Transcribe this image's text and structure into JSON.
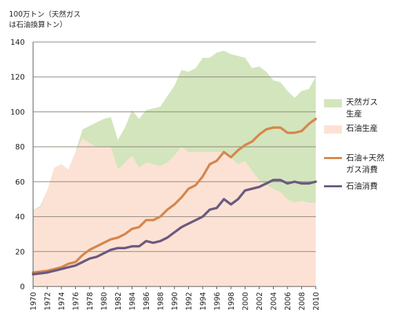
{
  "chart_data": {
    "type": "area",
    "unit_label_lines": [
      "100万トン（天然ガス",
      "は石油換算トン）"
    ],
    "x": [
      1970,
      1971,
      1972,
      1973,
      1974,
      1975,
      1976,
      1977,
      1978,
      1979,
      1980,
      1981,
      1982,
      1983,
      1984,
      1985,
      1986,
      1987,
      1988,
      1989,
      1990,
      1991,
      1992,
      1993,
      1994,
      1995,
      1996,
      1997,
      1998,
      1999,
      2000,
      2001,
      2002,
      2003,
      2004,
      2005,
      2006,
      2007,
      2008,
      2009,
      2010
    ],
    "x_ticks": [
      "1970",
      "1972",
      "1974",
      "1976",
      "1978",
      "1980",
      "1982",
      "1984",
      "1986",
      "1988",
      "1990",
      "1992",
      "1994",
      "1996",
      "1998",
      "2000",
      "2002",
      "2004",
      "2006",
      "2008",
      "2010"
    ],
    "ylim": [
      0,
      140
    ],
    "y_ticks": [
      "0",
      "20",
      "40",
      "60",
      "80",
      "100",
      "120",
      "140"
    ],
    "grid": "horizontal",
    "legend_position": "right",
    "series": [
      {
        "name_lines": [
          "天然ガス",
          "生産"
        ],
        "kind": "area-stacked",
        "color": "#d3e5bd",
        "values": [
          44,
          46,
          55,
          68,
          70,
          67,
          77,
          90,
          92,
          94,
          96,
          97,
          84,
          91,
          101,
          96,
          101,
          102,
          103,
          109,
          115,
          124,
          123,
          125,
          131,
          131,
          134,
          135,
          133,
          132,
          131,
          125,
          126,
          123,
          118,
          117,
          112,
          108,
          112,
          113,
          120
        ]
      },
      {
        "name_lines": [
          "石油生産"
        ],
        "kind": "area",
        "color": "#fce2d5",
        "values": [
          44,
          45,
          55,
          68,
          70,
          67,
          77,
          85,
          82,
          80,
          80,
          80,
          67,
          71,
          75,
          68,
          71,
          70,
          69,
          71,
          75,
          80,
          77,
          77,
          77,
          77,
          77,
          77,
          74,
          70,
          72,
          66,
          61,
          58,
          56,
          54,
          50,
          48,
          49,
          48,
          48
        ]
      },
      {
        "name_lines": [
          "石油+天然",
          "ガス消費"
        ],
        "kind": "line",
        "color": "#d5874e",
        "values": [
          8,
          8.5,
          9,
          10,
          11,
          13,
          14,
          18,
          21,
          23,
          25,
          27,
          28,
          30,
          33,
          34,
          38,
          38,
          40,
          44,
          47,
          51,
          56,
          58,
          63,
          70,
          72,
          77,
          74,
          78,
          81,
          83,
          87,
          90,
          91,
          91,
          88,
          88,
          89,
          93,
          96
        ]
      },
      {
        "name_lines": [
          "石油消費"
        ],
        "kind": "line",
        "color": "#6c5a80",
        "values": [
          7,
          7.5,
          8,
          9,
          10,
          11,
          12,
          14,
          16,
          17,
          19,
          21,
          22,
          22,
          23,
          23,
          26,
          25,
          26,
          28,
          31,
          34,
          36,
          38,
          40,
          44,
          45,
          50,
          47,
          50,
          55,
          56,
          57,
          59,
          61,
          61,
          59,
          60,
          59,
          59,
          60
        ]
      }
    ]
  }
}
